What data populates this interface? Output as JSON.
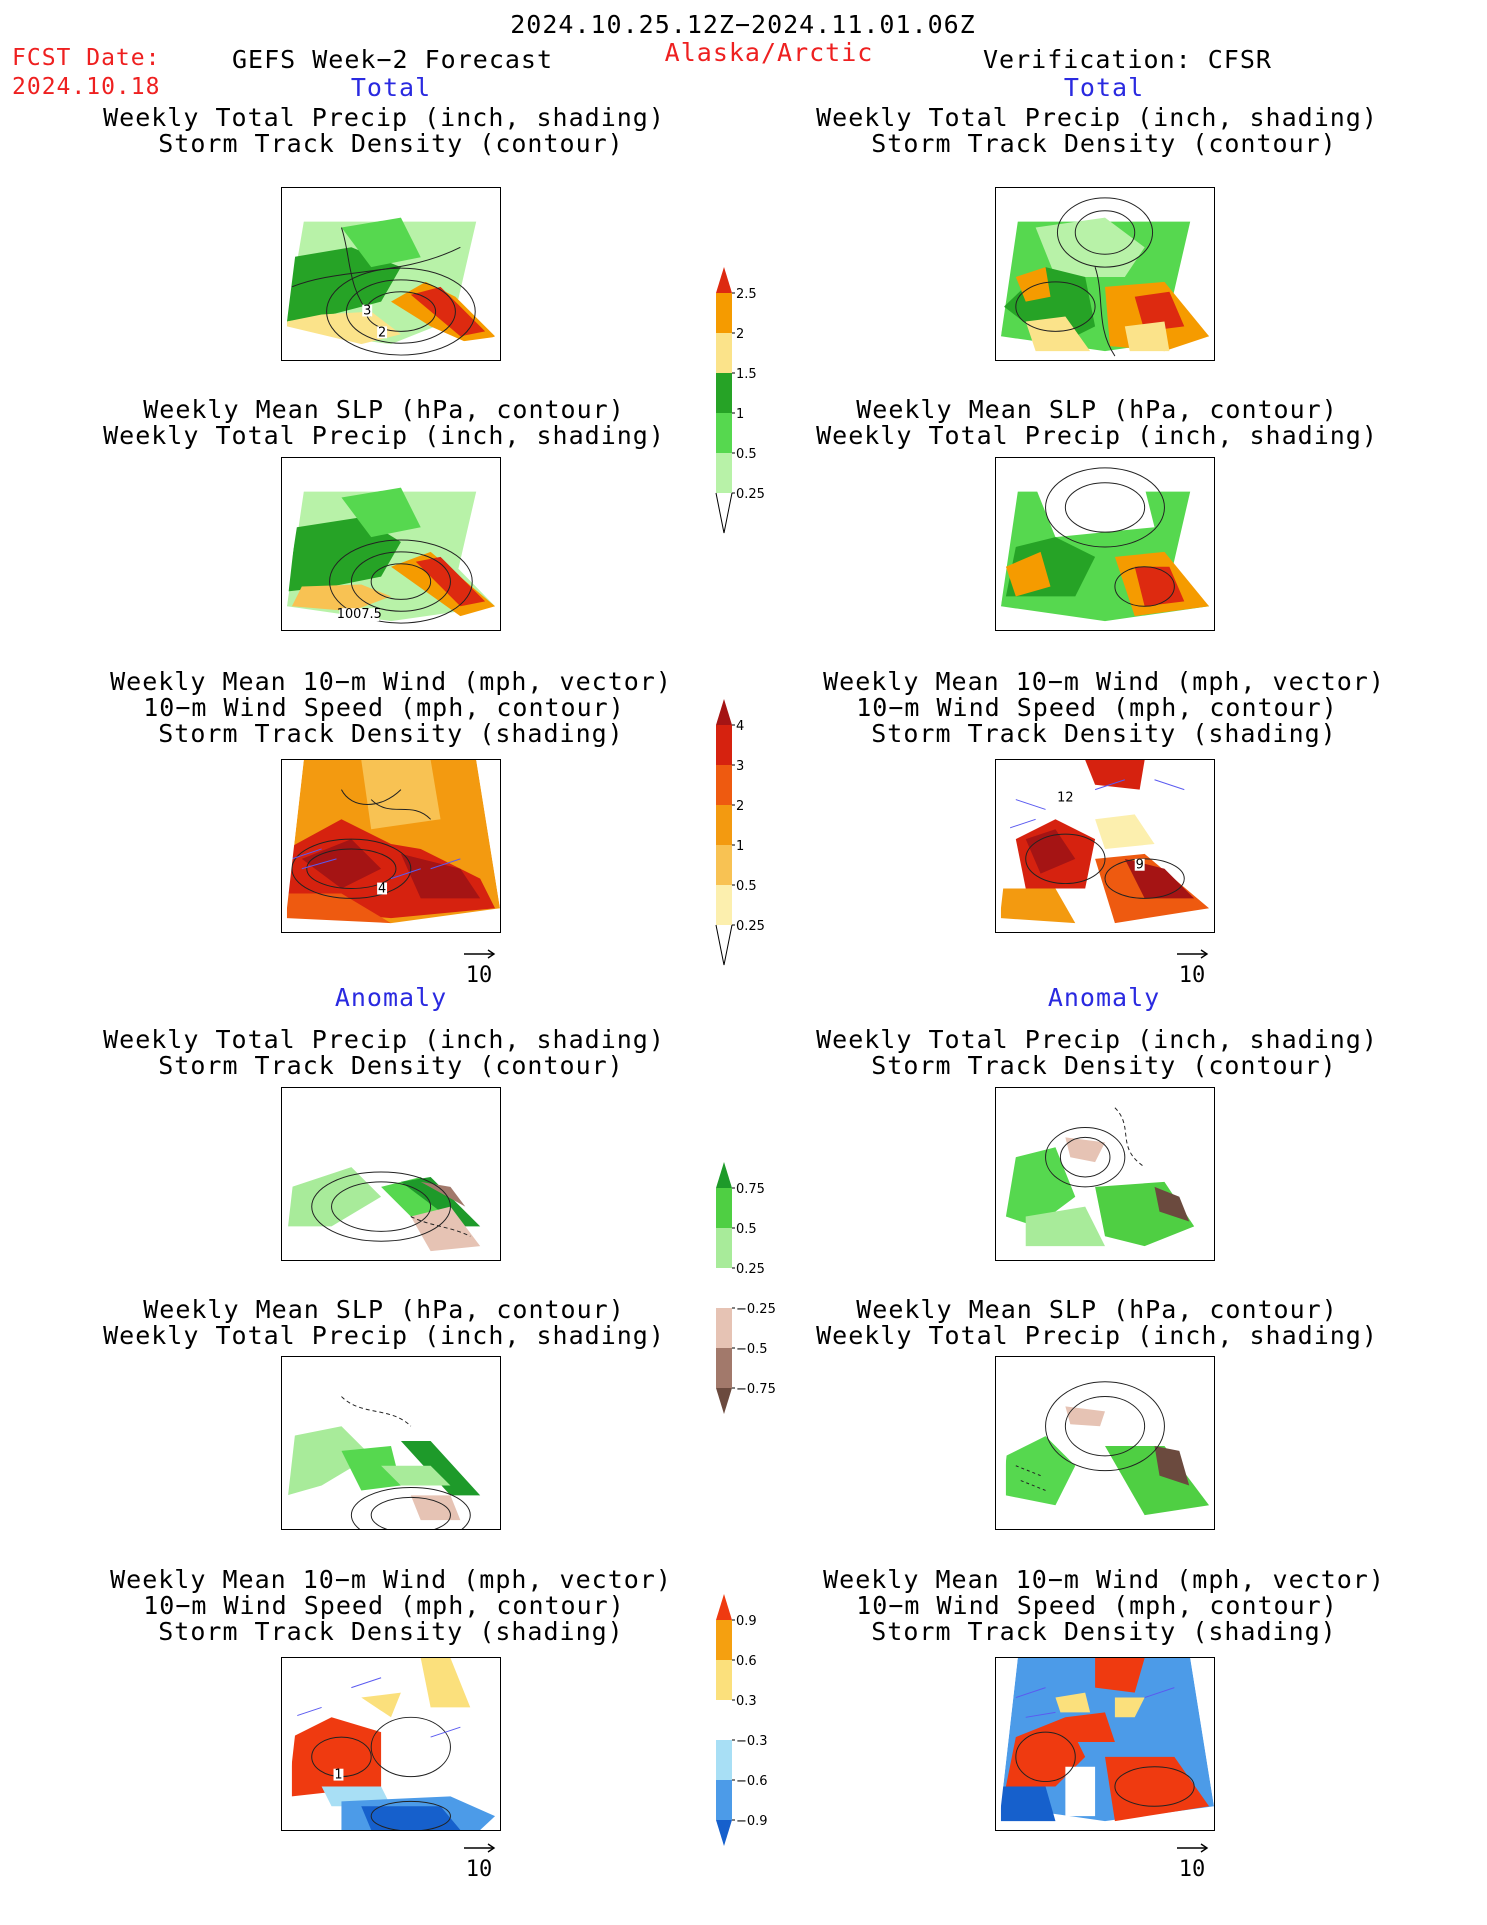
{
  "header": {
    "date_range": "2024.10.25.12Z−2024.11.01.06Z",
    "fcst_label": "FCST Date:",
    "fcst_date": "2024.10.18",
    "model": "GEFS Week−2 Forecast",
    "region": "Alaska/Arctic",
    "verification": "Verification: CFSR"
  },
  "sections": {
    "total_left": "Total",
    "total_right": "Total",
    "anom_left": "Anomaly",
    "anom_right": "Anomaly"
  },
  "titles": {
    "precip_track": [
      "Weekly Total Precip (inch, shading)",
      "Storm Track Density (contour)"
    ],
    "slp_precip": [
      "Weekly Mean SLP (hPa, contour)",
      "Weekly Total Precip (inch, shading)"
    ],
    "wind_track": [
      "Weekly Mean 10−m Wind (mph, vector)",
      "10−m Wind Speed (mph, contour)",
      "Storm Track Density (shading)"
    ]
  },
  "panels": {
    "fc_precip_total_contour_labels": [
      "3",
      "2"
    ],
    "fc_slp_total_contour_label": "1007.5",
    "fc_wind_total_contour_label": "4",
    "obs_wind_total_contour_labels": [
      "12",
      "9"
    ],
    "fc_wind_anom_contour_label": "1"
  },
  "wind_reference": {
    "value": "10"
  },
  "colorbars": {
    "precip_total": {
      "labels": [
        "2.5",
        "2",
        "1.5",
        "1",
        "0.5",
        "0.25"
      ],
      "colors": [
        "#dd2a10",
        "#f59b00",
        "#fbe38a",
        "#26a326",
        "#56d84f",
        "#b8f2a8"
      ]
    },
    "track_total": {
      "labels": [
        "4",
        "3",
        "2",
        "1",
        "0.5",
        "0.25"
      ],
      "colors": [
        "#a51414",
        "#d6220f",
        "#ee5a10",
        "#f39a10",
        "#f8c253",
        "#fcefae"
      ]
    },
    "precip_anom": {
      "labels": [
        "0.75",
        "0.5",
        "0.25",
        "−0.25",
        "−0.5",
        "−0.75"
      ],
      "colors": [
        "#1e9a2a",
        "#4fcf43",
        "#a8eb9a",
        "#ffffff",
        "#e6c3b4",
        "#a2796b",
        "#6b4a3e"
      ]
    },
    "track_anom": {
      "labels": [
        "0.9",
        "0.6",
        "0.3",
        "−0.3",
        "−0.6",
        "−0.9"
      ],
      "colors": [
        "#ef3a10",
        "#f5a010",
        "#fbe07c",
        "#ffffff",
        "#a8dff5",
        "#4c9be8",
        "#1660cc"
      ]
    }
  }
}
